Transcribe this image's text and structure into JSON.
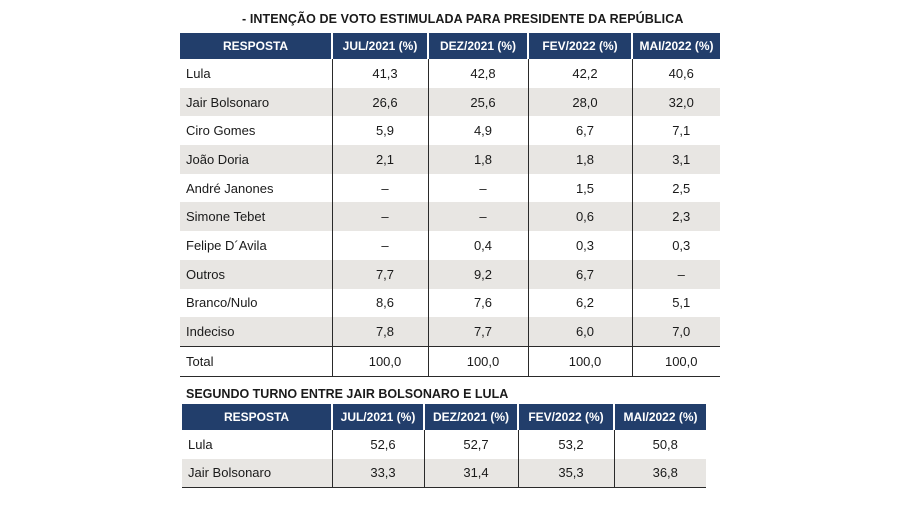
{
  "table1": {
    "title": "- INTENÇÃO DE VOTO ESTIMULADA PARA PRESIDENTE DA REPÚBLICA",
    "headers": [
      "RESPOSTA",
      "JUL/2021 (%)",
      "DEZ/2021 (%)",
      "FEV/2022 (%)",
      "MAI/2022 (%)"
    ],
    "rows": [
      [
        "Lula",
        "41,3",
        "42,8",
        "42,2",
        "40,6"
      ],
      [
        "Jair Bolsonaro",
        "26,6",
        "25,6",
        "28,0",
        "32,0"
      ],
      [
        "Ciro Gomes",
        "5,9",
        "4,9",
        "6,7",
        "7,1"
      ],
      [
        "João Doria",
        "2,1",
        "1,8",
        "1,8",
        "3,1"
      ],
      [
        "André Janones",
        "–",
        "–",
        "1,5",
        "2,5"
      ],
      [
        "Simone Tebet",
        "–",
        "–",
        "0,6",
        "2,3"
      ],
      [
        "Felipe D´Avila",
        "–",
        "0,4",
        "0,3",
        "0,3"
      ],
      [
        "Outros",
        "7,7",
        "9,2",
        "6,7",
        "–"
      ],
      [
        "Branco/Nulo",
        "8,6",
        "7,6",
        "6,2",
        "5,1"
      ],
      [
        "Indeciso",
        "7,8",
        "7,7",
        "6,0",
        "7,0"
      ],
      [
        "Total",
        "100,0",
        "100,0",
        "100,0",
        "100,0"
      ]
    ]
  },
  "table2": {
    "title": "SEGUNDO TURNO ENTRE JAIR BOLSONARO E LULA",
    "headers": [
      "RESPOSTA",
      "JUL/2021 (%)",
      "DEZ/2021 (%)",
      "FEV/2022 (%)",
      "MAI/2022 (%)"
    ],
    "rows": [
      [
        "Lula",
        "52,6",
        "52,7",
        "53,2",
        "50,8"
      ],
      [
        "Jair Bolsonaro",
        "33,3",
        "31,4",
        "35,3",
        "36,8"
      ]
    ]
  },
  "colors": {
    "header_bg": "#223e6b",
    "header_text": "#ffffff",
    "row_shade": "#e8e6e3"
  }
}
